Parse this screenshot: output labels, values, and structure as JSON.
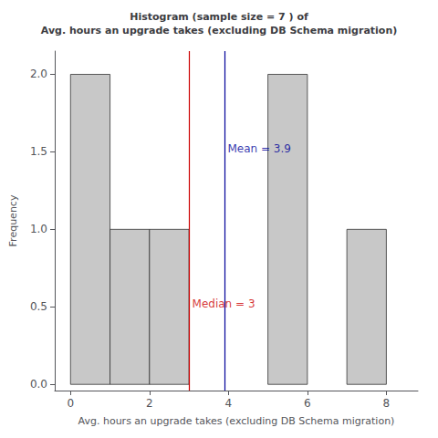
{
  "chart_data": {
    "type": "histogram",
    "title": "Histogram (sample size = 7 ) of\nAvg. hours an upgrade takes (excluding DB Schema migration)",
    "x_label": "Avg. hours an upgrade takes (excluding DB Schema migration)",
    "y_label": "Frequency",
    "bins": [
      0,
      1,
      2,
      3,
      4,
      5,
      6,
      7,
      8
    ],
    "values": [
      2,
      1,
      1,
      0,
      0,
      2,
      0,
      1
    ],
    "color": "#c8c8c8",
    "vlines": [
      {
        "x": 3,
        "color": "#cc0000"
      },
      {
        "x": 3.9,
        "color": "#000099"
      }
    ],
    "annotations": [
      {
        "text": "Median = 3",
        "x": 3.08,
        "y": 0.52,
        "color": "#cc0000"
      },
      {
        "text": "Mean = 3.9",
        "x": 3.98,
        "y": 1.52,
        "color": "#000099"
      }
    ],
    "xlim": [
      -0.4,
      8.8
    ],
    "ylim": [
      -0.04,
      2.15
    ],
    "xticks": [
      0,
      2,
      4,
      6,
      8
    ],
    "yticks": [
      {
        "value": 0,
        "label": "0.0"
      },
      0.5,
      {
        "value": 1,
        "label": "1.0"
      },
      1.5,
      {
        "value": 2,
        "label": "2.0"
      }
    ],
    "grid": false
  }
}
